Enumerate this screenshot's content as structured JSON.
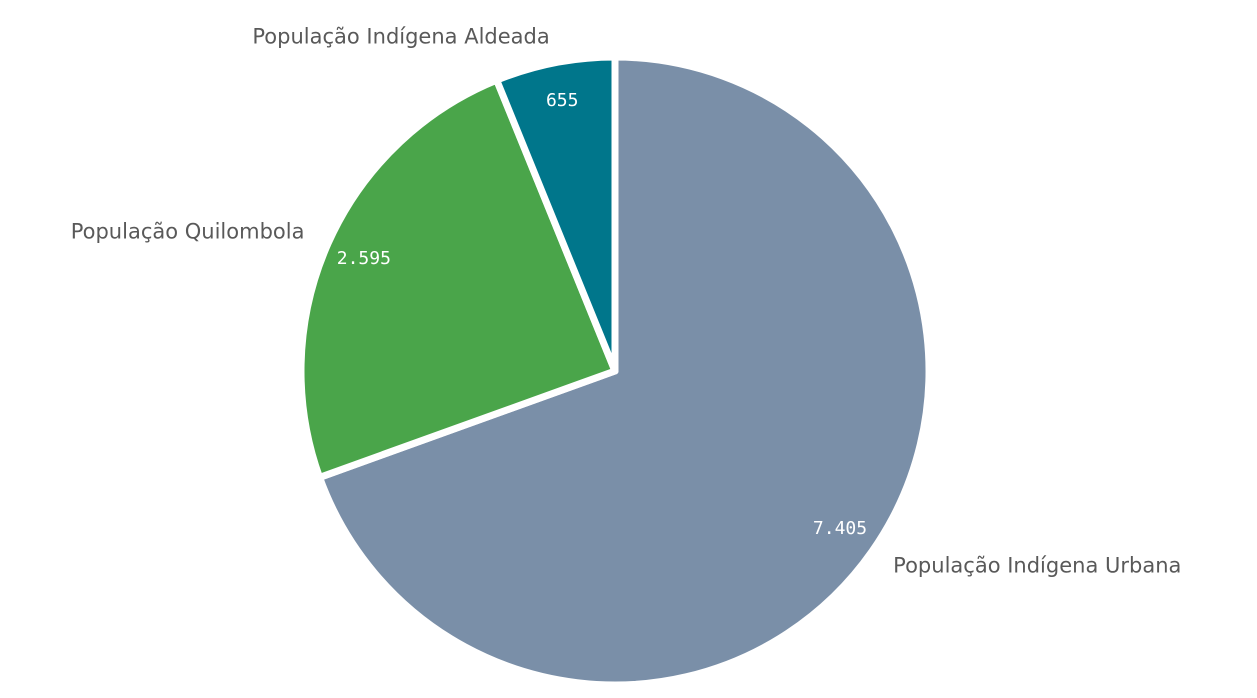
{
  "chart_data": {
    "type": "pie",
    "categories": [
      "População Indígena Urbana",
      "População Quilombola",
      "População Indígena Aldeada"
    ],
    "values": [
      7405,
      2595,
      655
    ],
    "value_labels": [
      "7.405",
      "2.595",
      "655"
    ],
    "colors": [
      "#7a8fa8",
      "#4aa54a",
      "#00768b"
    ]
  }
}
